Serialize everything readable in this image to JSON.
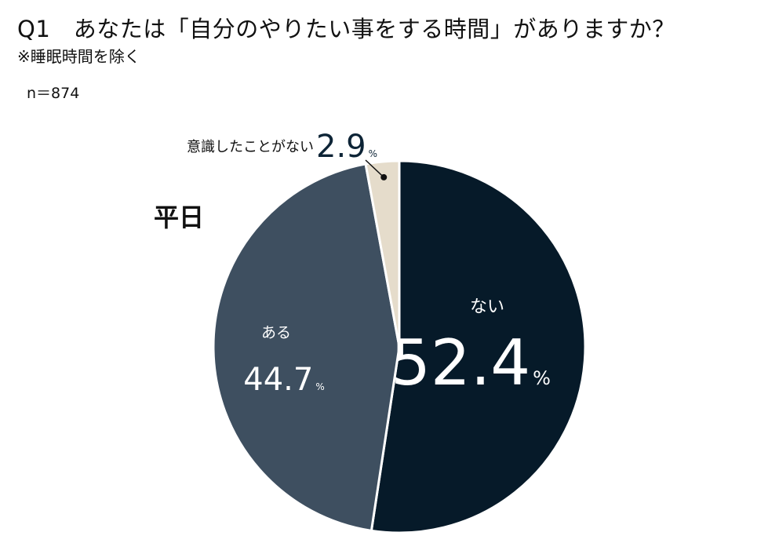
{
  "header": {
    "title": "Q1　あなたは「自分のやりたい事をする時間」がありますか？",
    "subtitle": "※睡眠時間を除く",
    "sample": "n＝874"
  },
  "panel_label": "平日",
  "chart_data": {
    "type": "pie",
    "title": "Q1　あなたは「自分のやりたい事をする時間」がありますか？",
    "slices": [
      {
        "label": "ない",
        "value": 52.4,
        "color": "#061a29",
        "text_color": "#ffffff"
      },
      {
        "label": "ある",
        "value": 44.7,
        "color": "#3e4f60",
        "text_color": "#ffffff"
      },
      {
        "label": "意識したことがない",
        "value": 2.9,
        "color": "#e5dccb",
        "text_color": "#111111"
      }
    ],
    "unit": "%",
    "start": "top, clockwise"
  }
}
